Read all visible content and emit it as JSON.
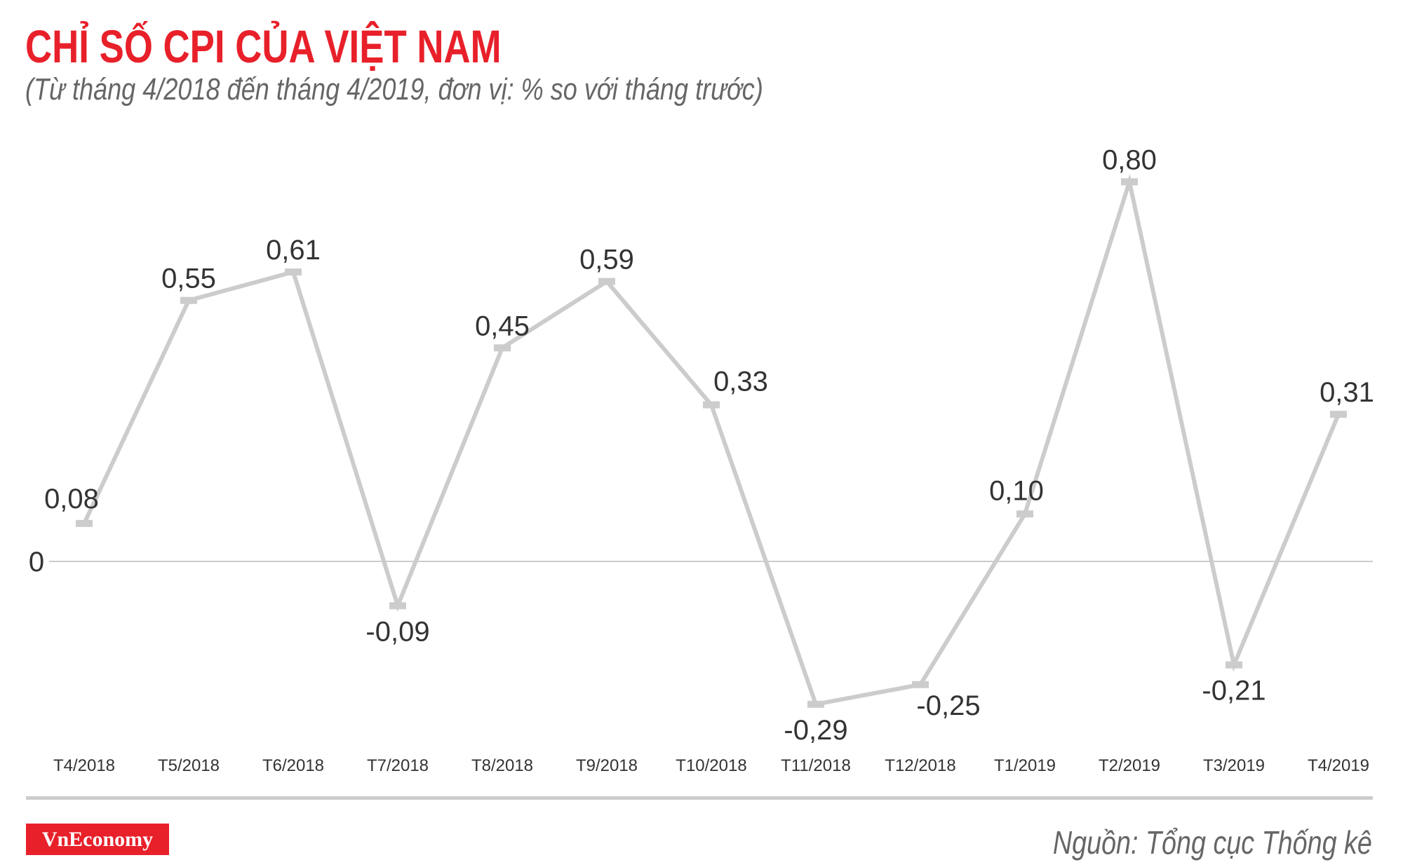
{
  "header": {
    "title": "CHỈ SỐ CPI CỦA VIỆT NAM",
    "subtitle": "(Từ tháng 4/2018 đến tháng 4/2019, đơn vị: % so với tháng trước)"
  },
  "footer": {
    "logo": "VnEconomy",
    "source": "Nguồn: Tổng cục Thống kê"
  },
  "colors": {
    "title": "#E8202A",
    "subtitle": "#666666",
    "line": "#CCCCCC",
    "label": "#333333",
    "logo_bg": "#E8202A"
  },
  "chart_data": {
    "type": "line",
    "title": "CHỈ SỐ CPI CỦA VIỆT NAM",
    "subtitle": "(Từ tháng 4/2018 đến tháng 4/2019, đơn vị: % so với tháng trước)",
    "xlabel": "",
    "ylabel": "% so với tháng trước",
    "categories": [
      "T4/2018",
      "T5/2018",
      "T6/2018",
      "T7/2018",
      "T8/2018",
      "T9/2018",
      "T10/2018",
      "T11/2018",
      "T12/2018",
      "T1/2019",
      "T2/2019",
      "T3/2019",
      "T4/2019"
    ],
    "series": [
      {
        "name": "CPI",
        "values": [
          0.08,
          0.55,
          0.61,
          -0.09,
          0.45,
          0.59,
          0.33,
          -0.29,
          -0.25,
          0.1,
          0.8,
          -0.21,
          0.31
        ]
      }
    ],
    "value_labels": [
      "0,08",
      "0,55",
      "0,61",
      "-0,09",
      "0,45",
      "0,59",
      "0,33",
      "-0,29",
      "-0,25",
      "0,10",
      "0,80",
      "-0,21",
      "0,31"
    ],
    "y_tick_labels": [
      "0"
    ],
    "ylim": [
      -0.3,
      0.85
    ],
    "grid": false,
    "zero_line": true,
    "legend": "none",
    "source": "Nguồn: Tổng cục Thống kê"
  }
}
